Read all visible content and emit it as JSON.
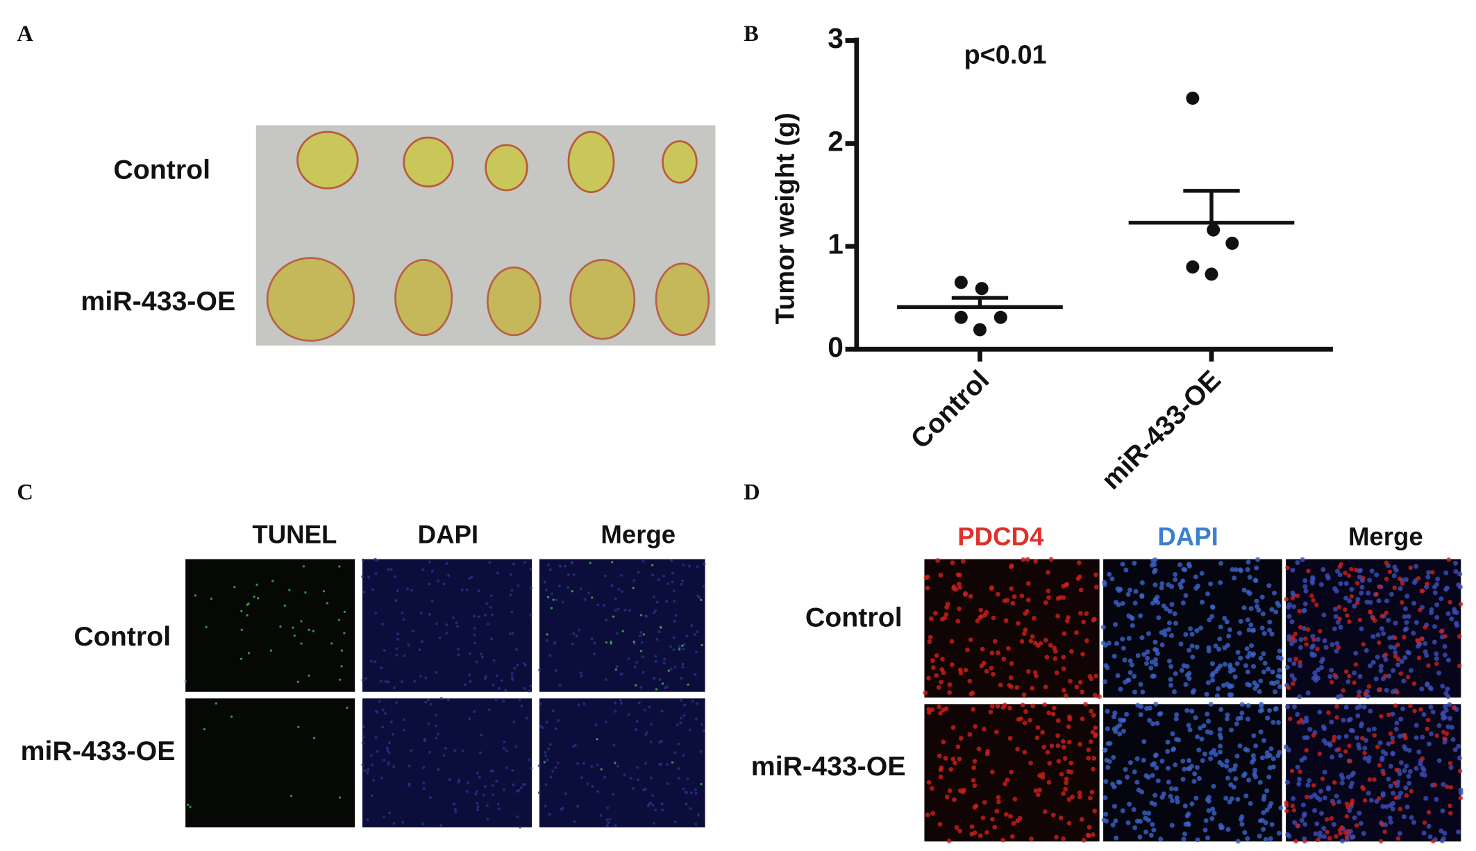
{
  "panels": {
    "A": {
      "label": "A",
      "rows": [
        "Control",
        "miR-433-OE"
      ]
    },
    "C": {
      "label": "C",
      "columns": [
        "TUNEL",
        "DAPI",
        "Merge"
      ],
      "rows": [
        "Control",
        "miR-433-OE"
      ]
    },
    "D": {
      "label": "D",
      "columns": [
        "PDCD4",
        "DAPI",
        "Merge"
      ],
      "rows": [
        "Control",
        "miR-433-OE"
      ]
    }
  },
  "chart_data": {
    "type": "scatter",
    "label": "B",
    "ylabel": "Tumor weight (g)",
    "annotation": "p<0.01",
    "categories": [
      "Control",
      "miR-433-OE"
    ],
    "points": [
      [
        0.65,
        0.59,
        0.31,
        0.31,
        0.19
      ],
      [
        2.44,
        1.16,
        1.03,
        0.8,
        0.73
      ]
    ],
    "mean": [
      0.41,
      1.23
    ],
    "sem": [
      0.09,
      0.31
    ],
    "color": "#111111",
    "ylim": [
      0,
      3
    ],
    "yticks": [
      0,
      1,
      2,
      3
    ]
  }
}
